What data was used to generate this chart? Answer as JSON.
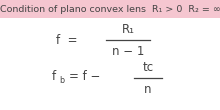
{
  "background_color": "#ffffff",
  "header_bg": "#f5c6d0",
  "header_text": "Condition of plano convex lens  R₁ > 0  R₂ = ∞",
  "formula1_num": "R₁",
  "formula1_den": "n − 1",
  "formula2_num": "tc",
  "formula2_den": "n",
  "header_fontsize": 6.8,
  "formula_fontsize": 8.5,
  "sub_fontsize": 5.8,
  "text_color": "#444444",
  "line_color": "#444444",
  "fig_bg": "#fce8ee"
}
